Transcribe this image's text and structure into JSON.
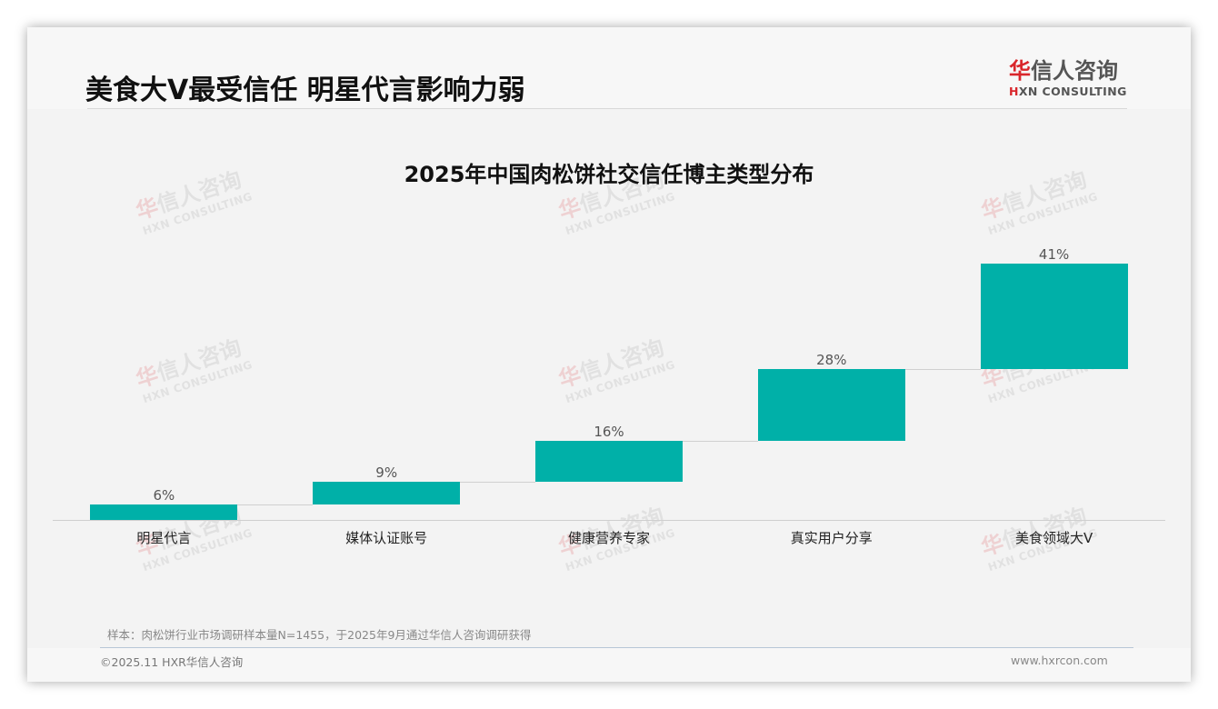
{
  "header": {
    "title": "美食大V最受信任 明星代言影响力弱",
    "logo_cn_first": "华",
    "logo_cn_rest": "信人咨询",
    "logo_en_first": "H",
    "logo_en_rest": "XN CONSULTING"
  },
  "watermark": {
    "cn_first": "华",
    "cn_rest": "信人咨询",
    "en": "HXN CONSULTING"
  },
  "chart_data": {
    "type": "bar",
    "subtype": "waterfall",
    "title": "2025年中国肉松饼社交信任博主类型分布",
    "categories": [
      "明星代言",
      "媒体认证账号",
      "健康营养专家",
      "真实用户分享",
      "美食领域大V"
    ],
    "values": [
      6,
      9,
      16,
      28,
      41
    ],
    "value_labels": [
      "6%",
      "9%",
      "16%",
      "28%",
      "41%"
    ],
    "unit": "%",
    "xlabel": "",
    "ylabel": "",
    "grid": false,
    "legend": "none",
    "bar_color": "#00b0a8",
    "ylim": [
      0,
      100
    ]
  },
  "footer": {
    "note": "样本：肉松饼行业市场调研样本量N=1455，于2025年9月通过华信人咨询调研获得",
    "copyright": "©2025.11 HXR华信人咨询",
    "website": "www.hxrcon.com"
  }
}
